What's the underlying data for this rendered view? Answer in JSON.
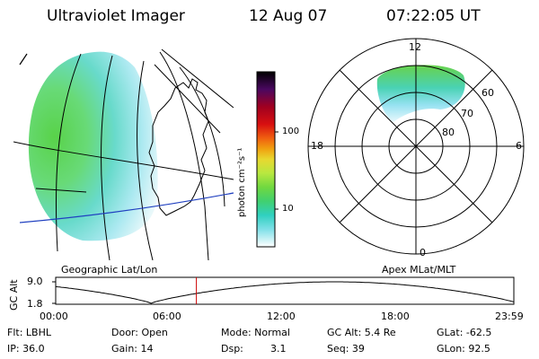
{
  "header": {
    "instrument": "Ultraviolet Imager",
    "date": "12 Aug 07",
    "time": "07:22:05 UT"
  },
  "geo_panel": {
    "caption": "Geographic Lat/Lon"
  },
  "polar_panel": {
    "caption": "Apex MLat/MLT",
    "mlt_labels": [
      "12",
      "18",
      "6",
      "0"
    ],
    "lat_labels": [
      "60",
      "70",
      "80"
    ]
  },
  "colorbar": {
    "unit_label": "photon cm⁻²s⁻¹",
    "ticks": [
      "100",
      "10"
    ],
    "colors": [
      "#000000",
      "#3a0a5a",
      "#7a0030",
      "#c00000",
      "#e04020",
      "#f08010",
      "#f0c020",
      "#e8e040",
      "#c0e840",
      "#80e040",
      "#40d060",
      "#30d0b0",
      "#50e0e0",
      "#a0e8f0",
      "#ffffff"
    ]
  },
  "altitude_plot": {
    "y_axis_label": "GC Alt",
    "y_ticks": [
      "9.0",
      "1.8"
    ],
    "x_ticks": [
      "00:00",
      "06:00",
      "12:00",
      "18:00",
      "23:59"
    ],
    "marker_time_hours": 7.37,
    "marker_color": "#cc0000"
  },
  "status": {
    "flt": "Flt: LBHL",
    "ip": "IP: 36.0",
    "door": "Door: Open",
    "gain": "Gain: 14",
    "mode": "Mode: Normal",
    "dsp_label": "Dsp:",
    "dsp_value": "3.1",
    "gc_alt": "GC Alt: 5.4 Re",
    "seq": "Seq: 39",
    "glat": "GLat: -62.5",
    "glon": "GLon: 92.5"
  }
}
